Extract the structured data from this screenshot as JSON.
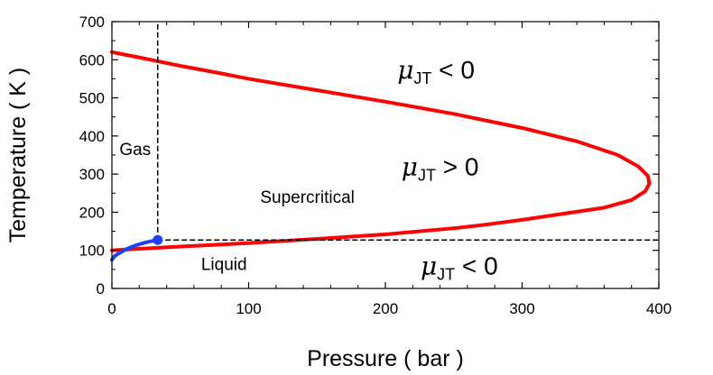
{
  "chart_data": {
    "type": "line",
    "title": "",
    "xlabel": "Pressure  ( bar )",
    "ylabel": "Temperature  ( K )",
    "xlim": [
      0,
      400
    ],
    "ylim": [
      0,
      700
    ],
    "xticks": [
      "0",
      "100",
      "200",
      "300",
      "400"
    ],
    "yticks": [
      "0",
      "100",
      "200",
      "300",
      "400",
      "500",
      "600",
      "700"
    ],
    "grid": false,
    "series": [
      {
        "color": "#ff0000",
        "style": "solid",
        "x": [
          0,
          20,
          50,
          80,
          100,
          150,
          200,
          250,
          300,
          340,
          370,
          385,
          392,
          393,
          390,
          380,
          360,
          330,
          300,
          270,
          250,
          200,
          150,
          100,
          50,
          20,
          0
        ],
        "y": [
          620,
          606,
          584,
          564,
          550,
          520,
          490,
          458,
          421,
          386,
          350,
          320,
          295,
          275,
          255,
          232,
          212,
          196,
          180,
          166,
          158,
          142,
          130,
          119,
          110,
          104,
          100
        ]
      },
      {
        "color": "#1f3fff",
        "style": "solid",
        "x": [
          0,
          2,
          5,
          10,
          15,
          20,
          25,
          30,
          33.5
        ],
        "y": [
          75,
          85,
          92,
          102,
          110,
          116,
          121,
          125,
          127
        ]
      },
      {
        "color": "#000000",
        "style": "dashed",
        "x": [
          33.5,
          33.5
        ],
        "y": [
          127,
          700
        ]
      },
      {
        "color": "#000000",
        "style": "dashed",
        "x": [
          33.5,
          400
        ],
        "y": [
          127,
          127
        ]
      }
    ],
    "points": [
      {
        "x": 33.5,
        "y": 127,
        "color": "#1f3fff"
      }
    ],
    "annotations": [
      {
        "text": "Gas",
        "x": 17,
        "y": 350
      },
      {
        "text": "Supercritical",
        "x": 143,
        "y": 225
      },
      {
        "text": "Liquid",
        "x": 82,
        "y": 48
      }
    ],
    "mu_labels": [
      {
        "symbol": "μ",
        "subscript": "JT",
        "relation": " < 0",
        "x": 237,
        "y": 575
      },
      {
        "symbol": "μ",
        "subscript": "JT",
        "relation": " > 0",
        "x": 240,
        "y": 320
      },
      {
        "symbol": "μ",
        "subscript": "JT",
        "relation": " < 0",
        "x": 254,
        "y": 60
      }
    ]
  }
}
